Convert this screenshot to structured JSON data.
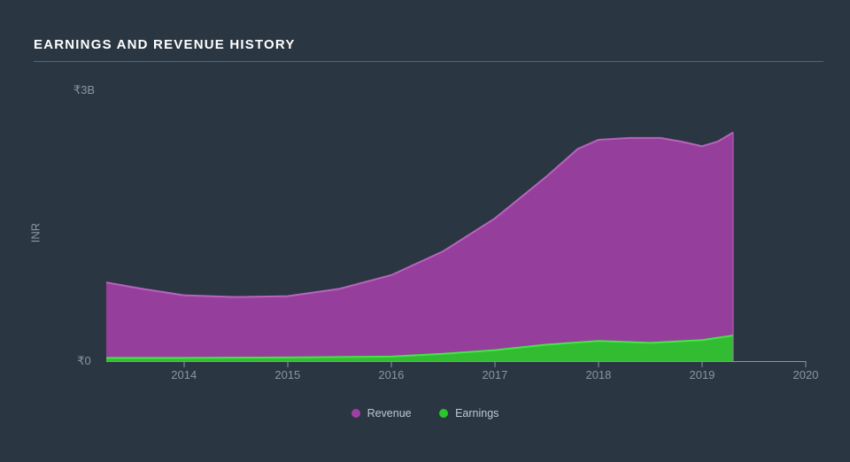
{
  "chart": {
    "title": "EARNINGS AND REVENUE HISTORY",
    "type": "area",
    "y_axis_title": "INR",
    "y_ticks": [
      {
        "label": "₹0",
        "value": 0
      },
      {
        "label": "₹3B",
        "value": 3
      }
    ],
    "y_lim": [
      0,
      3
    ],
    "x_ticks": [
      "2014",
      "2015",
      "2016",
      "2017",
      "2018",
      "2019",
      "2020"
    ],
    "x_domain": [
      2013.25,
      2020
    ],
    "data_x_end": 2019.3,
    "series": [
      {
        "name": "Revenue",
        "color": "#a03fa3",
        "stroke": "#b764bc",
        "points": [
          [
            2013.25,
            0.86
          ],
          [
            2013.6,
            0.79
          ],
          [
            2014.0,
            0.72
          ],
          [
            2014.5,
            0.7
          ],
          [
            2015.0,
            0.71
          ],
          [
            2015.5,
            0.79
          ],
          [
            2016.0,
            0.94
          ],
          [
            2016.5,
            1.2
          ],
          [
            2017.0,
            1.56
          ],
          [
            2017.5,
            2.02
          ],
          [
            2017.8,
            2.32
          ],
          [
            2018.0,
            2.42
          ],
          [
            2018.3,
            2.44
          ],
          [
            2018.6,
            2.44
          ],
          [
            2018.8,
            2.4
          ],
          [
            2019.0,
            2.35
          ],
          [
            2019.15,
            2.4
          ],
          [
            2019.3,
            2.5
          ]
        ]
      },
      {
        "name": "Earnings",
        "color": "#29c729",
        "stroke": "#45e545",
        "points": [
          [
            2013.25,
            0.035
          ],
          [
            2014.0,
            0.035
          ],
          [
            2015.0,
            0.04
          ],
          [
            2016.0,
            0.05
          ],
          [
            2016.5,
            0.08
          ],
          [
            2017.0,
            0.12
          ],
          [
            2017.5,
            0.18
          ],
          [
            2018.0,
            0.22
          ],
          [
            2018.5,
            0.2
          ],
          [
            2019.0,
            0.23
          ],
          [
            2019.3,
            0.28
          ]
        ]
      }
    ],
    "background_color": "#2a3642",
    "axis_color": "#8a95a0",
    "text_color_muted": "#8a95a0",
    "title_color": "#ffffff",
    "title_underline_color": "#5a6570",
    "legend_text_color": "#c0c8d0"
  }
}
